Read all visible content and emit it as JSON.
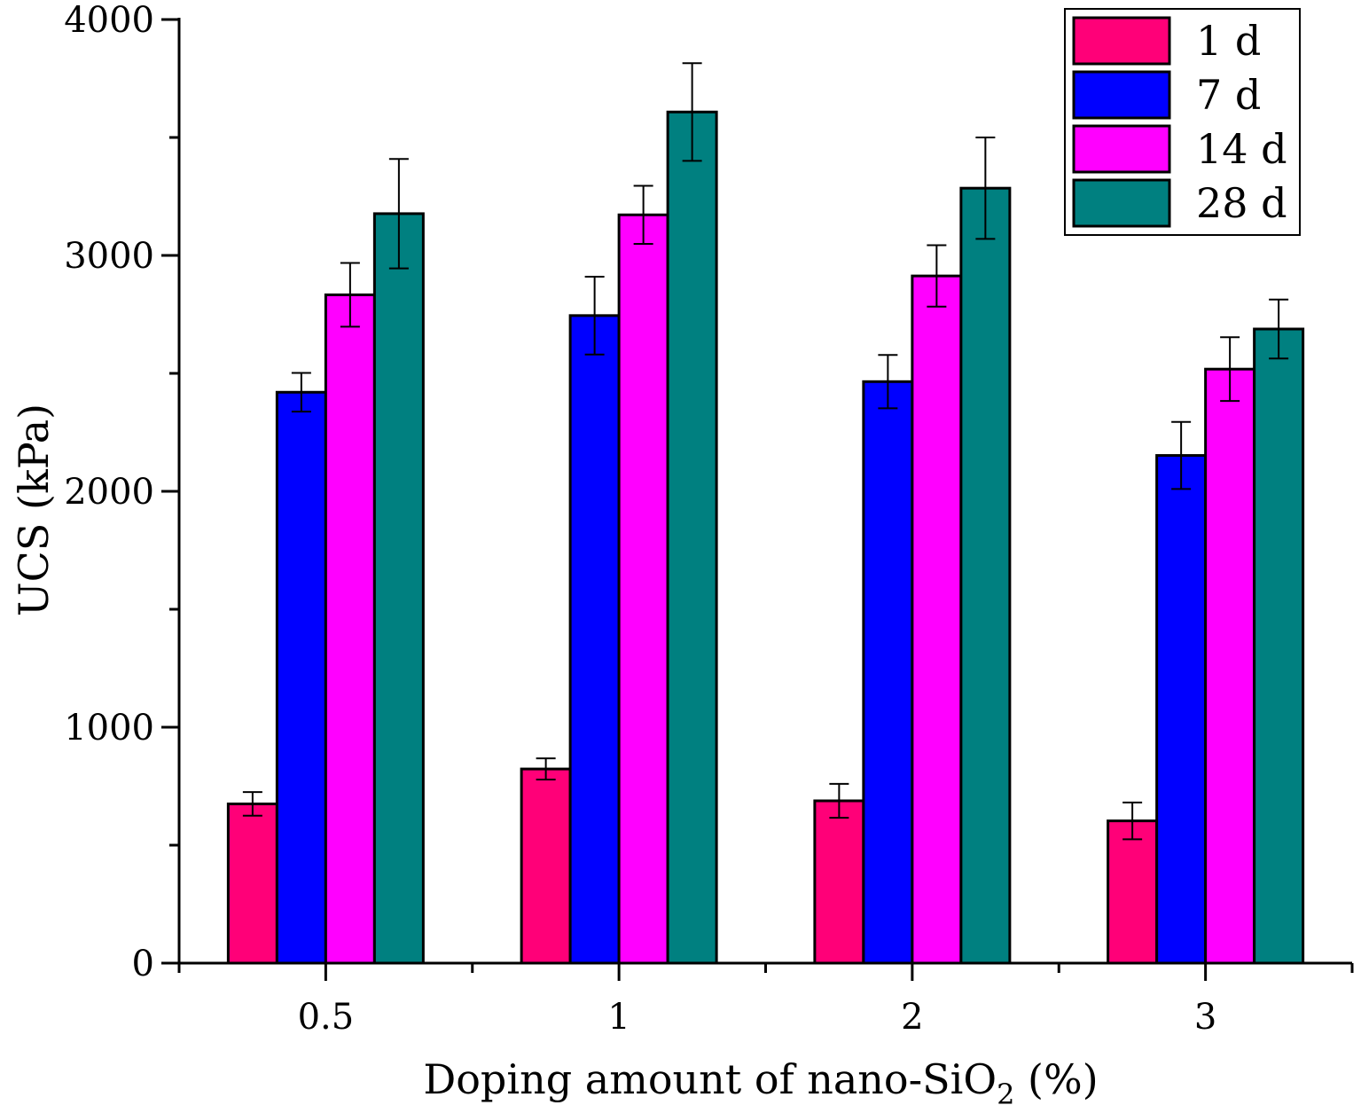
{
  "chart_data": {
    "type": "bar",
    "title": "",
    "xlabel": "Doping amount of nano-SiO",
    "xlabel_subscript": "2",
    "xlabel_suffix": " (%)",
    "ylabel": "UCS (kPa)",
    "ylim": [
      0,
      4000
    ],
    "yticks": [
      0,
      1000,
      2000,
      3000,
      4000
    ],
    "ytick_labels": [
      "0",
      "1000",
      "2000",
      "3000",
      "4000"
    ],
    "categories": [
      "0.5",
      "1",
      "2",
      "3"
    ],
    "legend_position": "top-right",
    "grid": false,
    "series": [
      {
        "name": "1 d",
        "color": "#ff0078",
        "values": [
          675,
          823,
          688,
          603
        ],
        "errors": [
          50,
          45,
          72,
          78
        ]
      },
      {
        "name": "7 d",
        "color": "#0000ff",
        "values": [
          2420,
          2745,
          2465,
          2152
        ],
        "errors": [
          82,
          165,
          113,
          142
        ]
      },
      {
        "name": "14 d",
        "color": "#ff00ff",
        "values": [
          2833,
          3172,
          2913,
          2518
        ],
        "errors": [
          135,
          123,
          130,
          135
        ]
      },
      {
        "name": "28 d",
        "color": "#008080",
        "values": [
          3177,
          3608,
          3285,
          2688
        ],
        "errors": [
          232,
          207,
          215,
          125
        ]
      }
    ]
  }
}
